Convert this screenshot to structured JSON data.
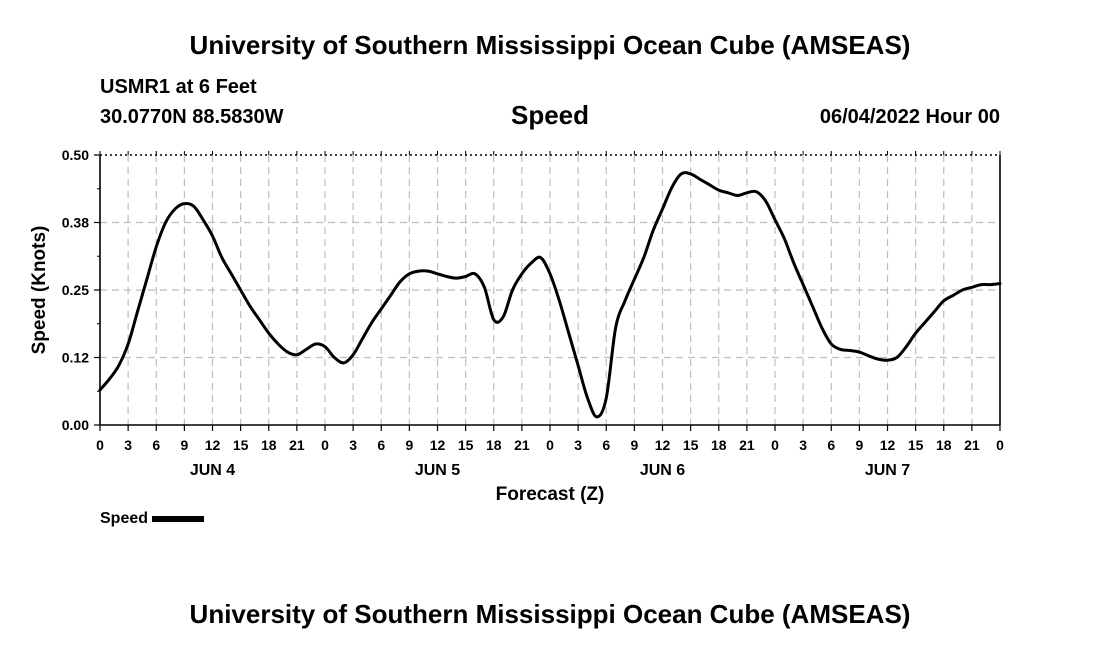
{
  "header": {
    "title": "University of Southern Mississippi Ocean Cube (AMSEAS)",
    "station": "USMR1 at 6 Feet",
    "coords": "30.0770N  88.5830W",
    "chart_title": "Speed",
    "date": "06/04/2022 Hour 00"
  },
  "footer": {
    "title": "University of Southern Mississippi Ocean Cube (AMSEAS)"
  },
  "legend": {
    "label": "Speed"
  },
  "chart_data": {
    "type": "line",
    "title": "Speed",
    "xlabel": "Forecast (Z)",
    "ylabel": "Speed (Knots)",
    "xlim": [
      0,
      96
    ],
    "ylim": [
      0,
      0.5
    ],
    "yticks": [
      0.0,
      0.125,
      0.25,
      0.375,
      0.5
    ],
    "ytick_labels": [
      "0.00",
      "0.12",
      "0.25",
      "0.38",
      "0.50"
    ],
    "xtick_labels": [
      "0",
      "3",
      "6",
      "9",
      "12",
      "15",
      "18",
      "21",
      "0",
      "3",
      "6",
      "9",
      "12",
      "15",
      "18",
      "21",
      "0",
      "3",
      "6",
      "9",
      "12",
      "15",
      "18",
      "21",
      "0",
      "3",
      "6",
      "9",
      "12",
      "15",
      "18",
      "21",
      "0"
    ],
    "day_labels": [
      {
        "label": "JUN 4",
        "hour": 12
      },
      {
        "label": "JUN 5",
        "hour": 36
      },
      {
        "label": "JUN 6",
        "hour": 60
      },
      {
        "label": "JUN 7",
        "hour": 84
      }
    ],
    "grid": true,
    "legend_position": "bottom-left",
    "series": [
      {
        "name": "Speed",
        "x": [
          0,
          1,
          2,
          3,
          4,
          5,
          6,
          7,
          8,
          9,
          10,
          11,
          12,
          13,
          14,
          15,
          16,
          17,
          18,
          19,
          20,
          21,
          22,
          23,
          24,
          25,
          26,
          27,
          28,
          29,
          30,
          31,
          32,
          33,
          34,
          35,
          36,
          37,
          38,
          39,
          40,
          41,
          42,
          43,
          44,
          45,
          46,
          47,
          48,
          49,
          50,
          51,
          52,
          53,
          54,
          55,
          56,
          57,
          58,
          59,
          60,
          61,
          62,
          63,
          64,
          65,
          66,
          67,
          68,
          69,
          70,
          71,
          72,
          73,
          74,
          75,
          76,
          77,
          78,
          79,
          80,
          81,
          82,
          83,
          84,
          85,
          86,
          87,
          88,
          89,
          90,
          91,
          92,
          93,
          94,
          95,
          96
        ],
        "values": [
          0.065,
          0.085,
          0.11,
          0.15,
          0.21,
          0.27,
          0.33,
          0.375,
          0.4,
          0.41,
          0.405,
          0.38,
          0.35,
          0.31,
          0.28,
          0.25,
          0.22,
          0.195,
          0.17,
          0.15,
          0.135,
          0.13,
          0.14,
          0.15,
          0.145,
          0.125,
          0.115,
          0.13,
          0.16,
          0.19,
          0.215,
          0.24,
          0.265,
          0.28,
          0.285,
          0.285,
          0.28,
          0.275,
          0.272,
          0.275,
          0.28,
          0.255,
          0.195,
          0.2,
          0.25,
          0.28,
          0.3,
          0.31,
          0.28,
          0.23,
          0.17,
          0.11,
          0.05,
          0.015,
          0.05,
          0.18,
          0.23,
          0.27,
          0.31,
          0.36,
          0.4,
          0.44,
          0.465,
          0.465,
          0.455,
          0.445,
          0.435,
          0.43,
          0.425,
          0.43,
          0.432,
          0.415,
          0.38,
          0.345,
          0.3,
          0.26,
          0.22,
          0.18,
          0.15,
          0.14,
          0.138,
          0.135,
          0.128,
          0.122,
          0.12,
          0.125,
          0.145,
          0.17,
          0.19,
          0.21,
          0.23,
          0.24,
          0.25,
          0.255,
          0.26,
          0.26,
          0.262
        ]
      }
    ]
  }
}
